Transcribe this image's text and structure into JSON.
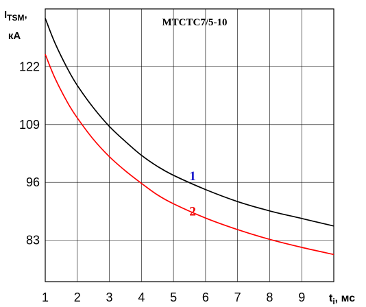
{
  "chart_data": {
    "type": "line",
    "title": "MTCTC7/5-10",
    "ylabel": {
      "main": "I",
      "sub": "TSM",
      "suffix": ",",
      "unit": "кА"
    },
    "xlabel": {
      "main": "t",
      "sub": "i",
      "suffix": ", мс"
    },
    "x_ticks": [
      1,
      2,
      3,
      4,
      5,
      6,
      7,
      8,
      9
    ],
    "y_ticks": [
      83,
      96,
      109,
      122
    ],
    "xlim": [
      1,
      10
    ],
    "ylim": [
      73.7,
      135
    ],
    "grid": true,
    "series": [
      {
        "name": "1",
        "color": "#000000",
        "x": [
          1,
          1.3,
          1.7,
          2,
          2.5,
          3,
          3.5,
          4,
          4.5,
          5,
          6,
          7,
          8,
          9,
          10
        ],
        "y": [
          132.9,
          127.4,
          121.5,
          117.8,
          112.8,
          108.6,
          105.2,
          102.1,
          99.6,
          97.6,
          94.4,
          91.7,
          89.6,
          87.9,
          86.2
        ]
      },
      {
        "name": "2",
        "color": "#ff0000",
        "x": [
          1,
          1.3,
          1.7,
          2,
          2.5,
          3,
          3.5,
          4,
          4.5,
          5,
          6,
          7,
          8,
          9,
          10
        ],
        "y": [
          124.8,
          119.5,
          113.9,
          110.5,
          105.7,
          101.8,
          98.6,
          95.8,
          93.2,
          91.2,
          88.0,
          85.4,
          83.2,
          81.4,
          79.8
        ]
      }
    ],
    "annotations": [
      {
        "text": "1",
        "color": "#1a1acc",
        "x": 5.6,
        "y": 96.5
      },
      {
        "text": "2",
        "color": "#ee0000",
        "x": 5.6,
        "y": 88.6
      }
    ]
  }
}
